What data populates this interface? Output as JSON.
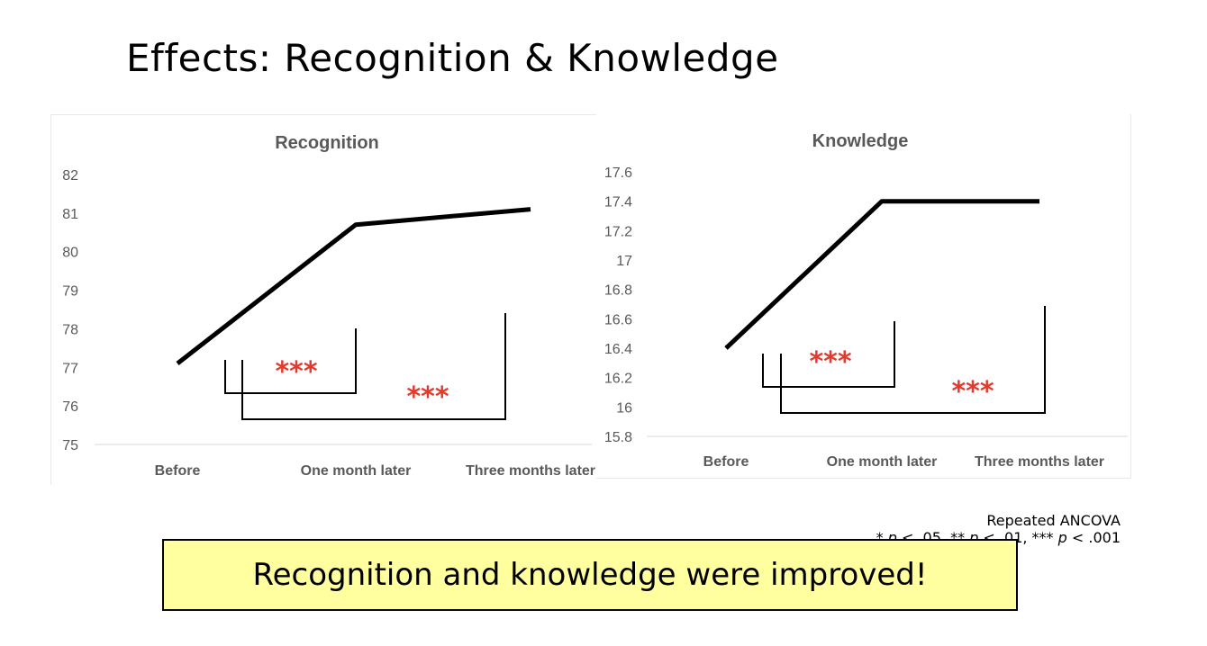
{
  "slide": {
    "title": "Effects: Recognition & Knowledge",
    "stats_method": "Repeated ANCOVA",
    "stats_legend": {
      "star1": "* ",
      "p1": "p",
      "thr1": " < .05, ",
      "star2": "** ",
      "p2": "p",
      "thr2": " < .01, ",
      "star3": "*** ",
      "p3": "p",
      "thr3": " < .001"
    },
    "conclusion": "Recognition and knowledge were improved!"
  },
  "colors": {
    "line": "#000000",
    "significance": "#e23a2e",
    "axis_text": "#595959",
    "title_text": "#595959"
  },
  "chart_data": [
    {
      "type": "line",
      "title": "Recognition",
      "categories": [
        "Before",
        "One month later",
        "Three months later"
      ],
      "values": [
        77.1,
        80.7,
        81.1
      ],
      "ylim": [
        75,
        82
      ],
      "yticks": [
        "75",
        "76",
        "77",
        "78",
        "79",
        "80",
        "81",
        "82"
      ],
      "grid": false,
      "significance": [
        {
          "from": "Before",
          "to": "One month later",
          "label": "***"
        },
        {
          "from": "Before",
          "to": "Three months later",
          "label": "***"
        }
      ]
    },
    {
      "type": "line",
      "title": "Knowledge",
      "categories": [
        "Before",
        "One month later",
        "Three months later"
      ],
      "values": [
        16.4,
        17.4,
        17.4
      ],
      "ylim": [
        15.8,
        17.6
      ],
      "yticks": [
        "15.8",
        "16",
        "16.2",
        "16.4",
        "16.6",
        "16.8",
        "17",
        "17.2",
        "17.4",
        "17.6"
      ],
      "grid": false,
      "significance": [
        {
          "from": "Before",
          "to": "One month later",
          "label": "***"
        },
        {
          "from": "Before",
          "to": "Three months later",
          "label": "***"
        }
      ]
    }
  ]
}
